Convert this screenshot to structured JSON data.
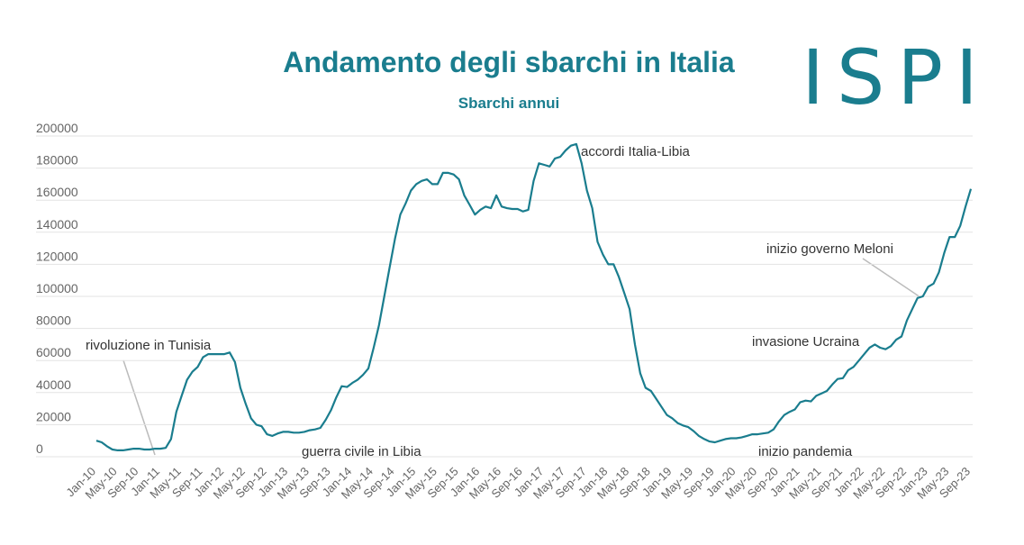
{
  "chart_data": {
    "type": "line",
    "title": "Andamento degli sbarchi in Italia",
    "subtitle": "Sbarchi annui",
    "logo": "ISPI",
    "categories": [
      "Jan-10",
      null,
      null,
      null,
      "May-10",
      null,
      null,
      null,
      "Sep-10",
      null,
      null,
      null,
      "Jan-11",
      null,
      null,
      null,
      "May-11",
      null,
      null,
      null,
      "Sep-11",
      null,
      null,
      null,
      "Jan-12",
      null,
      null,
      null,
      "May-12",
      null,
      null,
      null,
      "Sep-12",
      null,
      null,
      null,
      "Jan-13",
      null,
      null,
      null,
      "May-13",
      null,
      null,
      null,
      "Sep-13",
      null,
      null,
      null,
      "Jan-14",
      null,
      null,
      null,
      "May-14",
      null,
      null,
      null,
      "Sep-14",
      null,
      null,
      null,
      "Jan-15",
      null,
      null,
      null,
      "May-15",
      null,
      null,
      null,
      "Sep-15",
      null,
      null,
      null,
      "Jan-16",
      null,
      null,
      null,
      "May-16",
      null,
      null,
      null,
      "Sep-16",
      null,
      null,
      null,
      "Jan-17",
      null,
      null,
      null,
      "May-17",
      null,
      null,
      null,
      "Sep-17",
      null,
      null,
      null,
      "Jan-18",
      null,
      null,
      null,
      "May-18",
      null,
      null,
      null,
      "Sep-18",
      null,
      null,
      null,
      "Jan-19",
      null,
      null,
      null,
      "May-19",
      null,
      null,
      null,
      "Sep-19",
      null,
      null,
      null,
      "Jan-20",
      null,
      null,
      null,
      "May-20",
      null,
      null,
      null,
      "Sep-20",
      null,
      null,
      null,
      "Jan-21",
      null,
      null,
      null,
      "May-21",
      null,
      null,
      null,
      "Sep-21",
      null,
      null,
      null,
      "Jan-22",
      null,
      null,
      null,
      "May-22",
      null,
      null,
      null,
      "Sep-22",
      null,
      null,
      null,
      "Jan-23",
      null,
      null,
      null,
      "May-23",
      null,
      null,
      null,
      "Sep-23"
    ],
    "series": [
      {
        "name": "Sbarchi annui",
        "color": "#1a7d8e",
        "values": [
          10000,
          9000,
          6500,
          4500,
          4000,
          4000,
          4500,
          5000,
          5000,
          4500,
          4500,
          5000,
          5000,
          5500,
          11000,
          28000,
          38000,
          48000,
          53000,
          56000,
          62000,
          64000,
          64000,
          64000,
          64000,
          65000,
          59000,
          43000,
          33000,
          24000,
          20000,
          19000,
          14000,
          13000,
          14500,
          15500,
          15500,
          15000,
          15000,
          15500,
          16500,
          17000,
          18000,
          23000,
          29000,
          37000,
          44000,
          43500,
          46000,
          48000,
          51000,
          55000,
          68000,
          82000,
          100000,
          118000,
          136000,
          151000,
          158000,
          166000,
          170000,
          172000,
          173000,
          170000,
          170000,
          177000,
          177000,
          176000,
          173000,
          163000,
          157000,
          151000,
          154000,
          156000,
          155000,
          163000,
          156000,
          155000,
          154500,
          154500,
          153000,
          154000,
          172000,
          183000,
          182000,
          181000,
          186000,
          187000,
          191000,
          194000,
          195000,
          183000,
          166000,
          155000,
          134000,
          126000,
          120000,
          120000,
          112000,
          102000,
          92000,
          70000,
          52000,
          43000,
          41000,
          36000,
          31000,
          26000,
          24000,
          21000,
          19500,
          18500,
          16000,
          13000,
          11000,
          9500,
          9000,
          10000,
          11000,
          11500,
          11500,
          12000,
          13000,
          14000,
          14000,
          14500,
          15000,
          17000,
          22000,
          26000,
          28000,
          29500,
          34000,
          35000,
          34500,
          38000,
          39500,
          41000,
          45000,
          48500,
          49000,
          54000,
          56000,
          60000,
          64000,
          68000,
          70000,
          68000,
          67000,
          69000,
          73000,
          75000,
          85000,
          92000,
          99000,
          100000,
          106000,
          108000,
          115000,
          127000,
          137000,
          137000,
          144000,
          156000,
          167000
        ]
      }
    ],
    "ylim": [
      0,
      200000
    ],
    "yticks": [
      0,
      20000,
      40000,
      60000,
      80000,
      100000,
      120000,
      140000,
      160000,
      180000,
      200000
    ],
    "grid": true,
    "annotations": [
      "rivoluzione in Tunisia",
      "guerra civile in Libia",
      "accordi Italia-Libia",
      "inizio governo Meloni",
      "invasione Ucraina",
      "inizio pandemia"
    ]
  }
}
